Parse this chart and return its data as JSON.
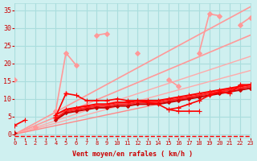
{
  "xlabel": "Vent moyen/en rafales ( km/h )",
  "ylabel": "",
  "bg_color": "#cff0f0",
  "grid_color": "#aadddd",
  "xlim": [
    0,
    23
  ],
  "ylim": [
    -1,
    37
  ],
  "yticks": [
    0,
    5,
    10,
    15,
    20,
    25,
    30,
    35
  ],
  "xticks": [
    0,
    1,
    2,
    3,
    4,
    5,
    6,
    7,
    8,
    9,
    10,
    11,
    12,
    13,
    14,
    15,
    16,
    17,
    18,
    19,
    20,
    21,
    22,
    23
  ],
  "series": [
    {
      "x": [
        0,
        1,
        2,
        3,
        4,
        5,
        6,
        7,
        8,
        9,
        10,
        11,
        12,
        13,
        14,
        15,
        16,
        17,
        18,
        19,
        20,
        21,
        22,
        23
      ],
      "y": [
        2.5,
        4.0,
        null,
        null,
        5.0,
        11.5,
        11.0,
        9.5,
        9.5,
        9.5,
        10.0,
        9.5,
        9.5,
        9.0,
        8.5,
        7.0,
        6.5,
        6.5,
        6.5,
        null,
        null,
        null,
        null,
        null
      ],
      "color": "#ff0000",
      "lw": 1.2,
      "marker": "+",
      "ms": 4,
      "zorder": 5
    },
    {
      "x": [
        0,
        1,
        2,
        3,
        4,
        5,
        6,
        7,
        8,
        9,
        10,
        11,
        12,
        13,
        14,
        15,
        16,
        17,
        18,
        19,
        20,
        21,
        22,
        23
      ],
      "y": [
        null,
        null,
        null,
        null,
        null,
        null,
        null,
        null,
        null,
        null,
        null,
        null,
        null,
        null,
        null,
        7.0,
        7.5,
        8.5,
        9.5,
        11.0,
        12.0,
        11.5,
        14.0,
        14.0
      ],
      "color": "#ff0000",
      "lw": 1.2,
      "marker": "+",
      "ms": 4,
      "zorder": 5
    },
    {
      "x": [
        0,
        1,
        2,
        3,
        4,
        5,
        6,
        7,
        8,
        9,
        10,
        11,
        12,
        13,
        14,
        15,
        16,
        17,
        18,
        19,
        20,
        21,
        22,
        23
      ],
      "y": [
        0.5,
        null,
        null,
        null,
        5.5,
        7.0,
        7.5,
        8.0,
        8.5,
        8.5,
        9.0,
        9.0,
        9.5,
        9.5,
        9.5,
        10.0,
        10.5,
        11.0,
        11.5,
        12.0,
        12.5,
        13.0,
        13.5,
        14.0
      ],
      "color": "#ff0000",
      "lw": 1.5,
      "marker": "+",
      "ms": 4,
      "zorder": 4
    },
    {
      "x": [
        0,
        1,
        2,
        3,
        4,
        5,
        6,
        7,
        8,
        9,
        10,
        11,
        12,
        13,
        14,
        15,
        16,
        17,
        18,
        19,
        20,
        21,
        22,
        23
      ],
      "y": [
        0.3,
        null,
        null,
        null,
        4.5,
        6.5,
        7.0,
        7.5,
        8.0,
        8.0,
        8.5,
        8.5,
        9.0,
        9.0,
        9.0,
        9.5,
        10.0,
        10.5,
        11.0,
        11.5,
        12.0,
        12.5,
        13.0,
        13.5
      ],
      "color": "#ff2222",
      "lw": 1.5,
      "marker": "+",
      "ms": 4,
      "zorder": 4
    },
    {
      "x": [
        0,
        1,
        2,
        3,
        4,
        5,
        6,
        7,
        8,
        9,
        10,
        11,
        12,
        13,
        14,
        15,
        16,
        17,
        18,
        19,
        20,
        21,
        22,
        23
      ],
      "y": [
        0.5,
        null,
        null,
        null,
        4.0,
        6.0,
        6.5,
        7.0,
        7.5,
        7.5,
        8.0,
        8.0,
        8.5,
        8.5,
        8.5,
        9.0,
        9.5,
        10.0,
        10.5,
        11.0,
        11.5,
        12.0,
        12.5,
        13.0
      ],
      "color": "#cc0000",
      "lw": 1.5,
      "marker": "D",
      "ms": 2,
      "zorder": 4
    },
    {
      "x": [
        0,
        1,
        2,
        3,
        4,
        5,
        6,
        7,
        8,
        9,
        10,
        11,
        12,
        13,
        14,
        15,
        16,
        17,
        18,
        19,
        20,
        21,
        22,
        23
      ],
      "y": [
        15.5,
        null,
        null,
        null,
        null,
        11.5,
        null,
        null,
        null,
        null,
        null,
        null,
        null,
        null,
        null,
        null,
        null,
        null,
        null,
        null,
        null,
        null,
        null,
        null
      ],
      "color": "#ff9999",
      "lw": 1.2,
      "marker": "D",
      "ms": 3,
      "zorder": 3
    },
    {
      "x": [
        0,
        1,
        2,
        3,
        4,
        5,
        6,
        7,
        8,
        9,
        10,
        11,
        12,
        13,
        14,
        15,
        16,
        17,
        18,
        19,
        20,
        21,
        22,
        23
      ],
      "y": [
        null,
        null,
        2.0,
        null,
        null,
        null,
        null,
        null,
        null,
        null,
        null,
        null,
        null,
        null,
        null,
        null,
        null,
        null,
        null,
        null,
        null,
        null,
        null,
        null
      ],
      "color": "#ff9999",
      "lw": 1.2,
      "marker": "D",
      "ms": 3,
      "zorder": 3
    },
    {
      "x": [
        0,
        1,
        2,
        3,
        4,
        5,
        6,
        7,
        8,
        9,
        10,
        11,
        12,
        13,
        14,
        15,
        16,
        17,
        18,
        19,
        20,
        21,
        22,
        23
      ],
      "y": [
        null,
        null,
        null,
        null,
        6.5,
        23.0,
        19.5,
        null,
        28.0,
        28.5,
        null,
        null,
        23.0,
        null,
        null,
        15.5,
        13.5,
        null,
        null,
        null,
        null,
        null,
        null,
        null
      ],
      "color": "#ff9999",
      "lw": 1.2,
      "marker": "D",
      "ms": 3,
      "zorder": 3
    },
    {
      "x": [
        0,
        1,
        2,
        3,
        4,
        5,
        6,
        7,
        8,
        9,
        10,
        11,
        12,
        13,
        14,
        15,
        16,
        17,
        18,
        19,
        20,
        21,
        22,
        23
      ],
      "y": [
        null,
        null,
        null,
        null,
        null,
        null,
        null,
        null,
        null,
        null,
        null,
        null,
        null,
        null,
        null,
        null,
        null,
        null,
        23.0,
        34.0,
        33.5,
        null,
        31.0,
        33.0
      ],
      "color": "#ff9999",
      "lw": 1.2,
      "marker": "D",
      "ms": 3,
      "zorder": 3
    },
    {
      "x": [
        0,
        23
      ],
      "y": [
        0,
        36
      ],
      "color": "#ff9999",
      "lw": 1.2,
      "marker": null,
      "ms": 0,
      "zorder": 2
    },
    {
      "x": [
        0,
        23
      ],
      "y": [
        0,
        28
      ],
      "color": "#ff9999",
      "lw": 1.2,
      "marker": null,
      "ms": 0,
      "zorder": 2
    },
    {
      "x": [
        0,
        23
      ],
      "y": [
        0,
        22
      ],
      "color": "#ffaaaa",
      "lw": 1.0,
      "marker": null,
      "ms": 0,
      "zorder": 2
    },
    {
      "x": [
        0,
        23
      ],
      "y": [
        0,
        18
      ],
      "color": "#ffaaaa",
      "lw": 1.0,
      "marker": null,
      "ms": 0,
      "zorder": 2
    },
    {
      "x": [
        0,
        23
      ],
      "y": [
        0,
        14
      ],
      "color": "#ff8888",
      "lw": 1.0,
      "marker": null,
      "ms": 0,
      "zorder": 2
    }
  ],
  "bottom_dashes": {
    "y": -0.5,
    "color": "#ff0000",
    "lw": 1.0
  }
}
